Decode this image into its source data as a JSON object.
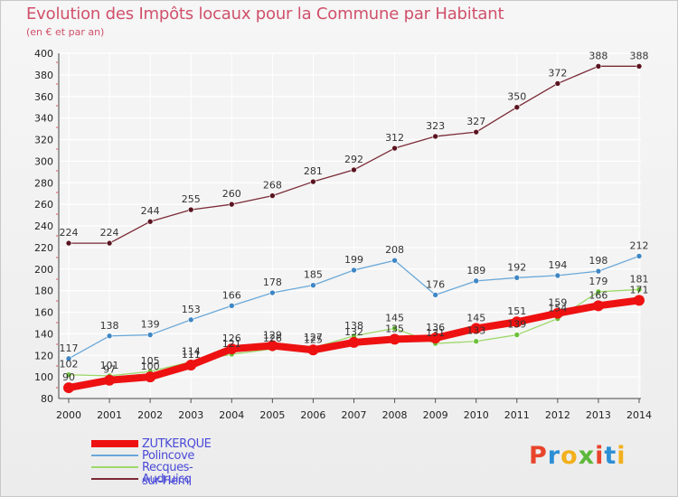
{
  "header": {
    "title": "Evolution des Impôts locaux pour la Commune par Habitant",
    "subtitle": "(en € et par an)"
  },
  "logo": {
    "text": "Proxiti",
    "colors": [
      "#e8442c",
      "#2c8fd6",
      "#f2b01c",
      "#5cb83a",
      "#e8442c",
      "#2c8fd6",
      "#f2b01c"
    ]
  },
  "chart_data": {
    "type": "line",
    "title": "Evolution des Impôts locaux pour la Commune par Habitant",
    "subtitle": "(en € et par an)",
    "x": [
      "2000",
      "2001",
      "2002",
      "2003",
      "2004",
      "2005",
      "2006",
      "2007",
      "2008",
      "2009",
      "2010",
      "2011",
      "2012",
      "2013",
      "2014"
    ],
    "ylim": [
      80,
      400
    ],
    "yticks": [
      80,
      100,
      120,
      140,
      160,
      180,
      200,
      220,
      240,
      260,
      280,
      300,
      320,
      340,
      360,
      380,
      400
    ],
    "grid": true,
    "legend_position": "bottom-left",
    "series": [
      {
        "name": "Audruicq",
        "color": "#7a2a36",
        "marker": "#5a1420",
        "width": 1.3,
        "radius": 3,
        "values": [
          224,
          224,
          244,
          255,
          260,
          268,
          281,
          292,
          312,
          323,
          327,
          350,
          372,
          388,
          388
        ]
      },
      {
        "name": "Polincove",
        "color": "#6aa8d8",
        "marker": "#3f86c4",
        "width": 1.3,
        "radius": 3,
        "values": [
          117,
          138,
          139,
          153,
          166,
          178,
          185,
          199,
          208,
          176,
          189,
          192,
          194,
          198,
          212
        ]
      },
      {
        "name": "Recques-sur-Hem",
        "color": "#9ed86a",
        "marker": "#6cc03a",
        "width": 1.3,
        "radius": 3,
        "values": [
          102,
          101,
          105,
          114,
          121,
          126,
          127,
          138,
          145,
          131,
          133,
          139,
          154,
          179,
          181
        ]
      },
      {
        "name": "ZUTKERQUE",
        "color": "#ee1111",
        "marker": "#ee1111",
        "width": 8,
        "radius": 6,
        "values": [
          90,
          97,
          100,
          111,
          126,
          129,
          125,
          132,
          135,
          136,
          145,
          151,
          159,
          166,
          171
        ]
      }
    ],
    "legend_order": [
      "ZUTKERQUE",
      "Polincove",
      "Recques-sur-Hem",
      "Audruicq"
    ]
  }
}
